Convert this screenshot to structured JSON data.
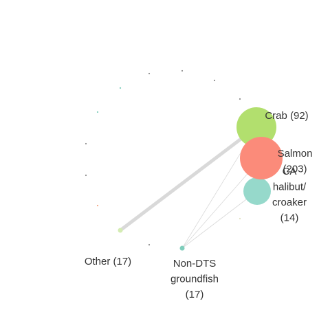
{
  "network": {
    "nodes": [
      {
        "id": "crab",
        "label_lines": [
          "Crab (92)"
        ],
        "value": 92,
        "color": "#b2df6e"
      },
      {
        "id": "salmon",
        "label_lines": [
          "Salmon",
          "(203)"
        ],
        "value": 203,
        "color": "#fb8b7a"
      },
      {
        "id": "ca-halibut",
        "label_lines": [
          "CA",
          "halibut/",
          "croaker",
          "(14)"
        ],
        "value": 14,
        "color": "#96d9cb"
      },
      {
        "id": "other",
        "label_lines": [
          "Other (17)"
        ],
        "value": 17,
        "color": "#d4ecb3"
      },
      {
        "id": "non-dts",
        "label_lines": [
          "Non-DTS",
          "groundfish",
          "(17)"
        ],
        "value": 17,
        "color": "#7fcdbb"
      }
    ],
    "minor_nodes": [
      {
        "color": "#8c8c8c"
      },
      {
        "color": "#8c8c8c"
      },
      {
        "color": "#8c8c8c"
      },
      {
        "color": "#7fcdbb"
      },
      {
        "color": "#8c8c8c"
      },
      {
        "color": "#7fcdbb"
      },
      {
        "color": "#8c8c8c"
      },
      {
        "color": "#8c8c8c"
      },
      {
        "color": "#f4a582"
      },
      {
        "color": "#8c8c8c"
      },
      {
        "color": "#e0e0c0"
      }
    ],
    "edges": [
      {
        "source": "crab",
        "target": "other",
        "weight": "heavy"
      },
      {
        "source": "crab",
        "target": "non-dts",
        "weight": "light"
      },
      {
        "source": "salmon",
        "target": "non-dts",
        "weight": "light"
      },
      {
        "source": "ca-halibut",
        "target": "non-dts",
        "weight": "light"
      },
      {
        "source": "crab",
        "target": "salmon",
        "weight": "medium"
      }
    ],
    "edge_color": "#d9d9d9"
  }
}
